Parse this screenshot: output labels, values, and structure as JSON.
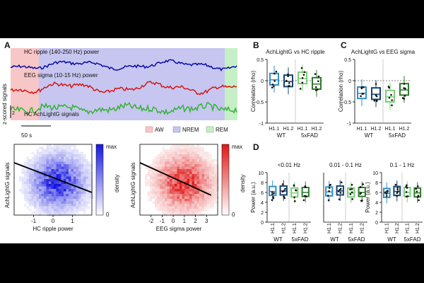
{
  "panel_labels": {
    "A": "A",
    "B": "B",
    "C": "C",
    "D": "D"
  },
  "traces": {
    "hc_ripple": {
      "label": "HC ripple (140-250 Hz) power",
      "color": "#0a0aa8"
    },
    "eeg_sigma": {
      "label": "EEG sigma (10-15 Hz) power",
      "color": "#d81414"
    },
    "achlightg": {
      "label": "HC AchLightG signals",
      "color": "#34b234"
    },
    "y_axis_label": "z-scored signals",
    "y_scale_label": "2",
    "time_scale_label": "50 s"
  },
  "states_legend": [
    {
      "label": "AW",
      "color": "#f7c6c6"
    },
    {
      "label": "NREM",
      "color": "#c6c6f0"
    },
    {
      "label": "REM",
      "color": "#c6efc6"
    }
  ],
  "colors": {
    "wt": "#2f8fc9",
    "wt_dark": "#15416e",
    "fad": "#7cce78",
    "fad_dark": "#2e7a2e",
    "reg": "#000000"
  },
  "chart_data": [
    {
      "type": "heatmap",
      "id": "ripple_density",
      "xlabel": "HC ripple power",
      "ylabel": "AchLightG signals",
      "colorbar": {
        "max_label": "max",
        "min_label": "0",
        "label": "density"
      },
      "xticks": [
        "-1",
        "0",
        "1"
      ],
      "regression": {
        "x1": -2.5,
        "y1": 0.6,
        "x2": 2.0,
        "y2": -0.45
      }
    },
    {
      "type": "heatmap",
      "id": "sigma_density",
      "xlabel": "EEG sigma power",
      "ylabel": "AchLightG signals",
      "colorbar": {
        "max_label": "max",
        "min_label": "0",
        "label": "density"
      },
      "xticks": [
        "-2",
        "-1",
        "0",
        "1",
        "2",
        "3"
      ],
      "regression": {
        "x1": -2.5,
        "y1": 0.6,
        "x2": 3.0,
        "y2": -0.55
      }
    },
    {
      "type": "box",
      "id": "B",
      "title": "AchLightG vs HC ripple",
      "ylabel": "Correlation (rho)",
      "ylim": [
        -1,
        0.5
      ],
      "yticks": [
        "0.5",
        "0",
        "-0.5",
        "-1"
      ],
      "categories": [
        "H1.1",
        "H1.2",
        "H1.1",
        "H1.2"
      ],
      "groups": [
        "WT",
        "5xFAD"
      ],
      "medians": [
        0.02,
        -0.02,
        0.05,
        -0.08
      ]
    },
    {
      "type": "box",
      "id": "C",
      "title": "AchLightG vs EEG sigma",
      "ylabel": "Correlation (rho)",
      "ylim": [
        -1,
        0.5
      ],
      "yticks": [
        "0.5",
        "0",
        "-0.5",
        "-1"
      ],
      "categories": [
        "H1.1",
        "H1.2",
        "H1.1",
        "H1.2"
      ],
      "groups": [
        "WT",
        "5xFAD"
      ],
      "medians": [
        -0.3,
        -0.32,
        -0.38,
        -0.22
      ]
    },
    {
      "type": "box",
      "id": "D1",
      "title": "<0.01 Hz",
      "ylabel": "Power (a.u.)",
      "ylim": [
        0,
        10
      ],
      "yticks": [
        "10",
        "8",
        "6",
        "4",
        "2",
        "0"
      ],
      "categories": [
        "H1.1",
        "H1.2",
        "H1.1",
        "H1.2"
      ],
      "groups": [
        "WT",
        "5xFAD"
      ],
      "medians": [
        6.2,
        6.3,
        5.9,
        6.0
      ]
    },
    {
      "type": "box",
      "id": "D2",
      "title": "0.01 - 0.1 Hz",
      "ylabel": "",
      "ylim": [
        0,
        10
      ],
      "yticks": [],
      "categories": [
        "H1.1",
        "H1.2",
        "H1.1",
        "H1.2"
      ],
      "groups": [
        "WT",
        "5xFAD"
      ],
      "medians": [
        6.1,
        6.3,
        5.9,
        6.0
      ]
    },
    {
      "type": "box",
      "id": "D3",
      "title": "0.1 - 1 Hz",
      "ylabel": "Power (a.u.)",
      "ylim": [
        0,
        10
      ],
      "yticks": [
        "10",
        "8",
        "6",
        "4",
        "2",
        "0"
      ],
      "categories": [
        "H1.1",
        "H1.2",
        "H1.1",
        "H1.2"
      ],
      "groups": [
        "WT",
        "5xFAD"
      ],
      "medians": [
        5.8,
        6.2,
        6.0,
        5.9
      ]
    }
  ]
}
